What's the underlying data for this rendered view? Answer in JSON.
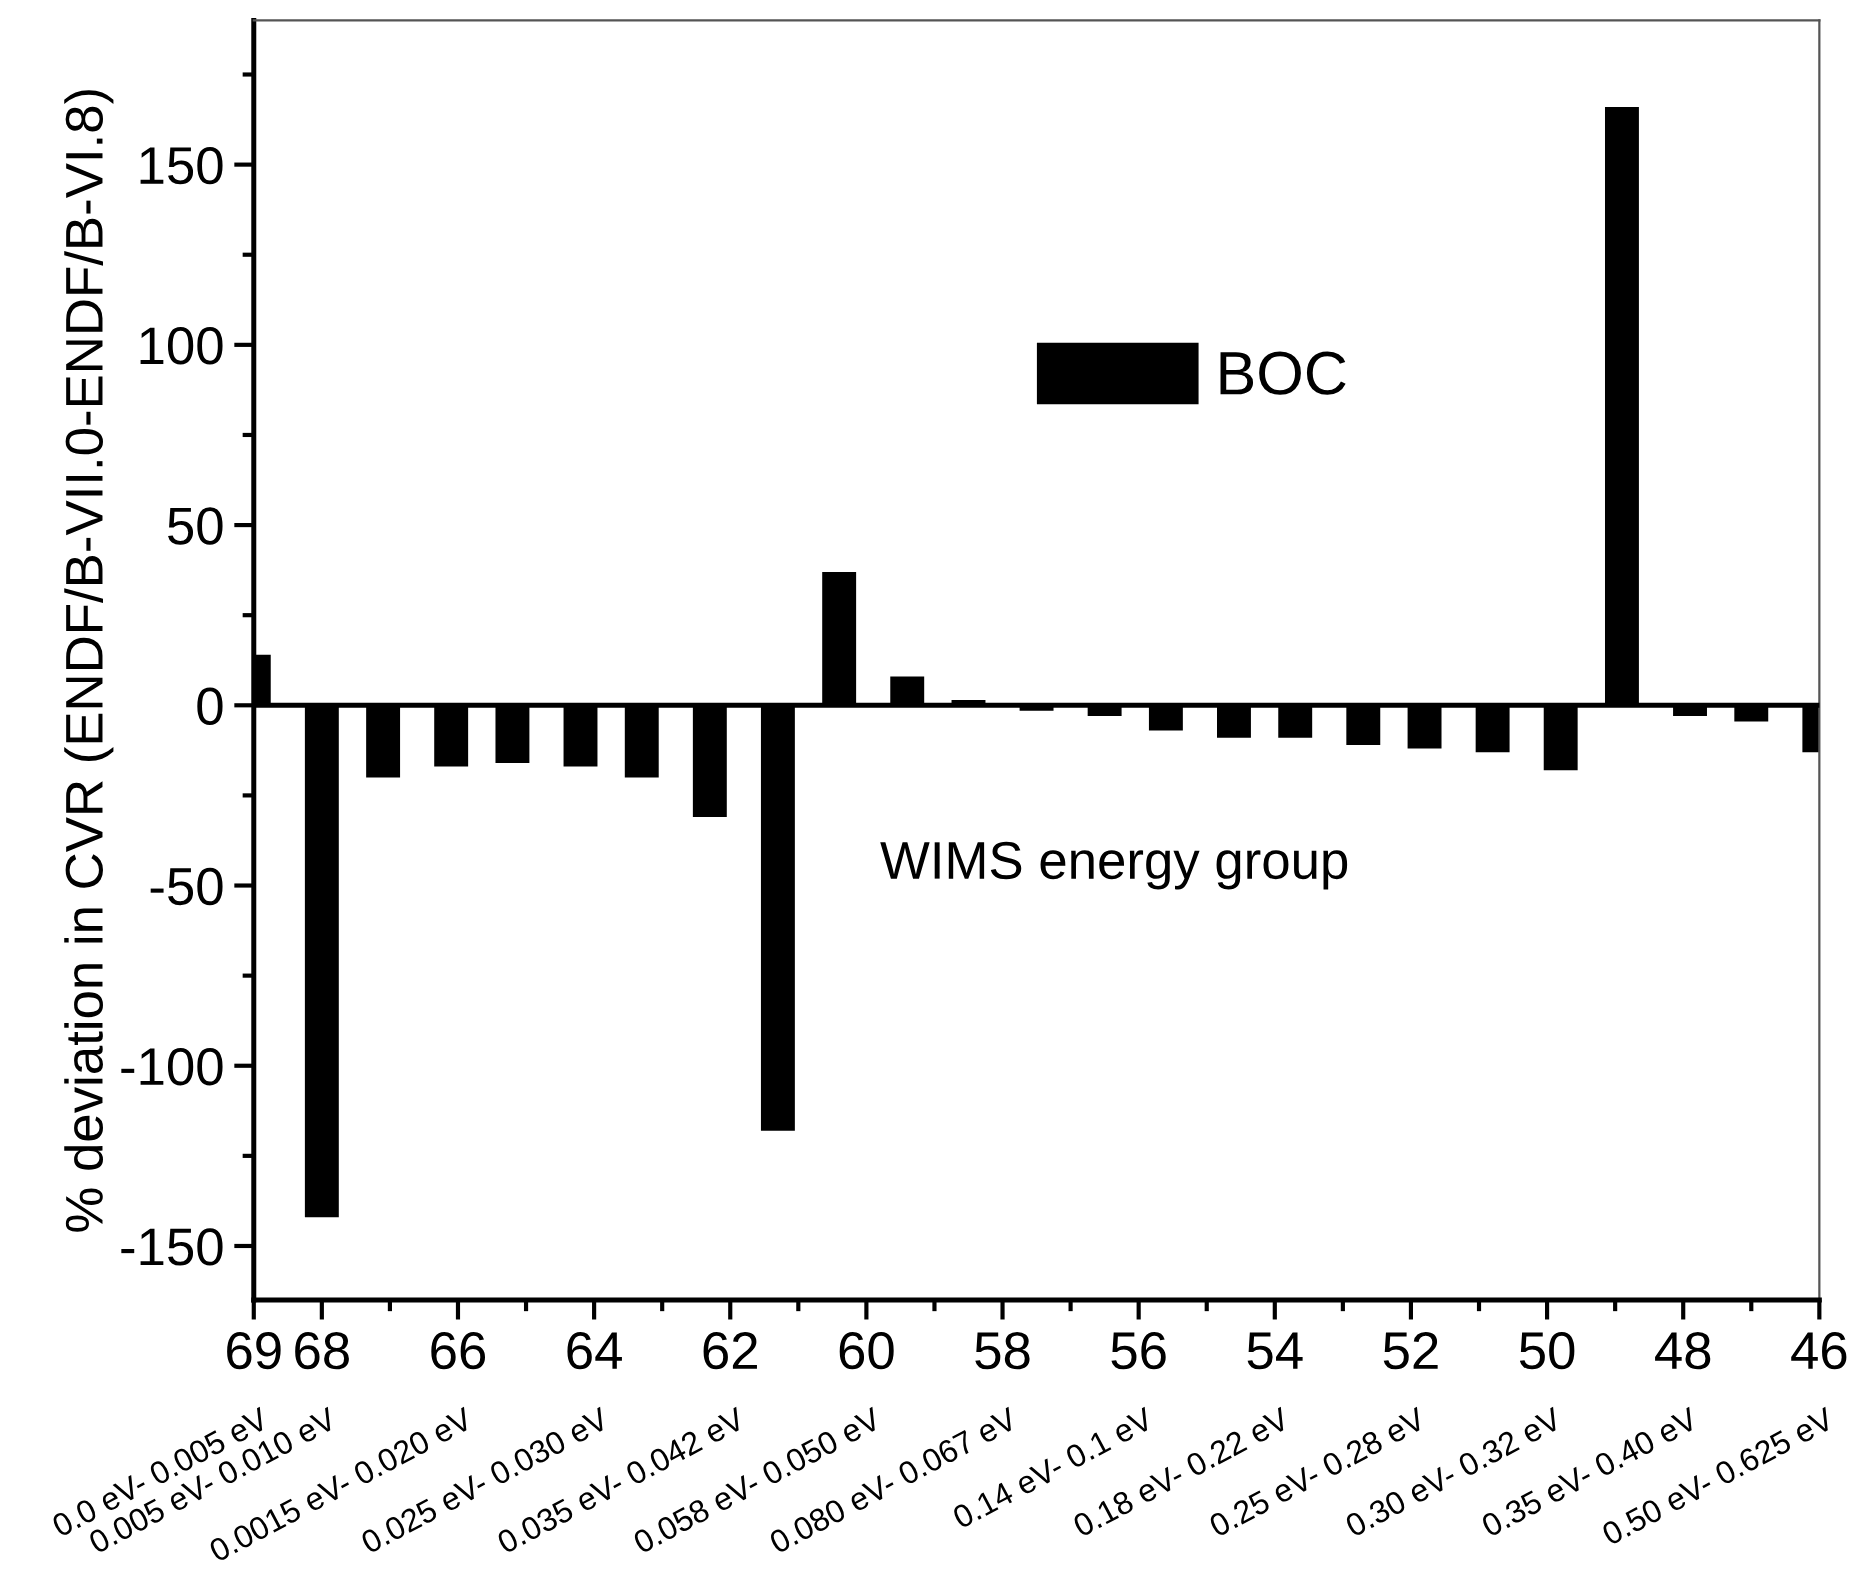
{
  "chart_data": {
    "type": "bar",
    "xlabel": "WIMS energy group",
    "ylabel": "% deviation in CVR (ENDF/B-VII.0-ENDF/B-VI.8)",
    "x": [
      69,
      68.0,
      67.1,
      66.1,
      65.2,
      64.2,
      63.3,
      62.3,
      61.3,
      60.4,
      59.4,
      58.5,
      57.5,
      56.5,
      55.6,
      54.6,
      53.7,
      52.7,
      51.8,
      50.8,
      49.8,
      48.9,
      47.9,
      47.0,
      46
    ],
    "series": [
      {
        "name": "BOC",
        "color": "#000000",
        "values": [
          14,
          -142,
          -20,
          -17,
          -16,
          -17,
          -20,
          -31,
          -118,
          37,
          8,
          1.5,
          -1.5,
          -3,
          -7,
          -9,
          -9,
          -11,
          -12,
          -13,
          -18,
          166,
          -3,
          -4.5,
          -13
        ]
      }
    ],
    "xlim": [
      69,
      46
    ],
    "xticks": [
      69,
      68,
      {
        "value": 67,
        "label": null
      },
      66,
      {
        "value": 65,
        "label": null
      },
      64,
      {
        "value": 63,
        "label": null
      },
      62,
      {
        "value": 61,
        "label": null
      },
      60,
      {
        "value": 59,
        "label": null
      },
      58,
      {
        "value": 57,
        "label": null
      },
      56,
      {
        "value": 55,
        "label": null
      },
      54,
      {
        "value": 53,
        "label": null
      },
      52,
      {
        "value": 51,
        "label": null
      },
      50,
      {
        "value": 49,
        "label": null
      },
      48,
      {
        "value": 47,
        "label": null
      },
      46
    ],
    "ylim": [
      -165,
      190
    ],
    "yticks": [
      {
        "value": -150,
        "label": "-150"
      },
      {
        "value": -125,
        "label": null
      },
      {
        "value": -100,
        "label": "-100"
      },
      {
        "value": -75,
        "label": null
      },
      {
        "value": -50,
        "label": "-50"
      },
      {
        "value": -25,
        "label": null
      },
      0,
      {
        "value": 25,
        "label": null
      },
      50,
      {
        "value": 75,
        "label": null
      },
      100,
      {
        "value": 125,
        "label": null
      },
      150,
      {
        "value": 175,
        "label": null
      }
    ],
    "ref_lines": [
      {
        "axis": "y",
        "value": 0,
        "color": "#000000",
        "line_style": "solid"
      }
    ],
    "annotations": [
      "0.0 eV- 0.005 eV",
      "0.005 eV- 0.010 eV",
      "0.0015 eV- 0.020 eV",
      "0.025 eV- 0.030 eV",
      "0.035 eV- 0.042 eV",
      "0.058 eV- 0.050 eV",
      "0.080 eV- 0.067 eV",
      "0.14 eV- 0.1 eV",
      "0.18 eV- 0.22 eV",
      "0.25 eV- 0.28 eV",
      "0.30 eV- 0.32 eV",
      "0.35 eV- 0.40 eV",
      "0.50 eV- 0.625 eV"
    ],
    "legend": "top",
    "grid": false
  }
}
